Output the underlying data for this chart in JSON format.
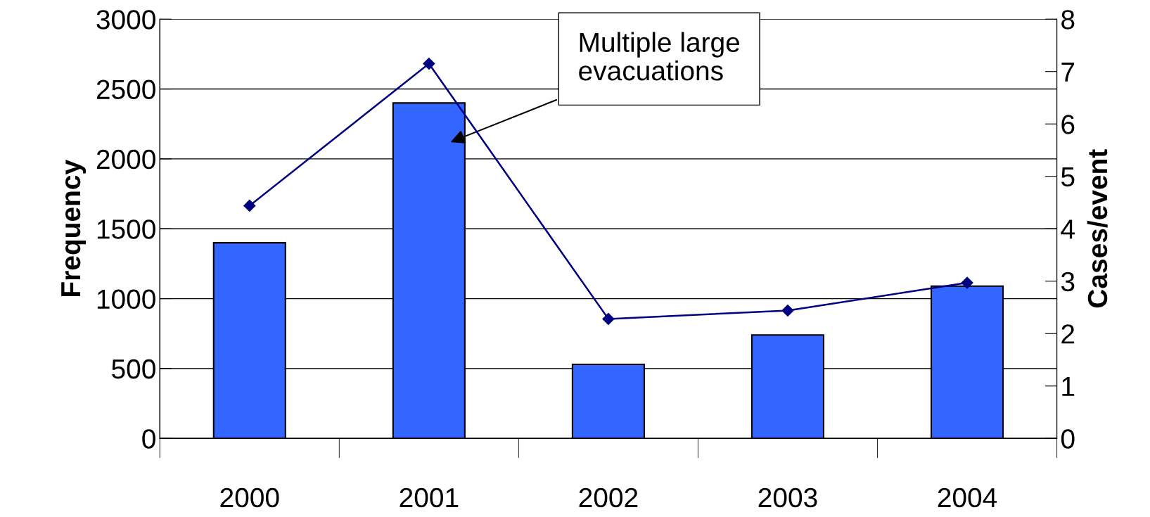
{
  "chart_data": {
    "type": "bar",
    "categories": [
      "2000",
      "2001",
      "2002",
      "2003",
      "2004"
    ],
    "series": [
      {
        "color": "#3366ff",
        "values": [
          1400,
          2400,
          530,
          740,
          1090
        ]
      },
      {
        "type": "line",
        "axis": "y2",
        "color": "#000080",
        "values": [
          4.44,
          7.15,
          2.28,
          2.44,
          2.97
        ]
      }
    ],
    "ylabel": "Frequency",
    "y2label": "Cases/event",
    "ylim": [
      0,
      3000
    ],
    "yticks": [
      0,
      500,
      1000,
      1500,
      2000,
      2500,
      3000
    ],
    "y2lim": [
      0,
      8
    ],
    "y2ticks": [
      0,
      1,
      2,
      3,
      4,
      5,
      6,
      7,
      8
    ],
    "grid": "y",
    "marker": "diamond",
    "line_style": "solid",
    "legend": false,
    "annotations": [
      "Multiple large\nevacuations"
    ]
  }
}
